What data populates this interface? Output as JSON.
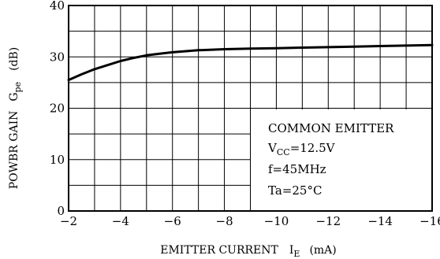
{
  "chart_data": {
    "type": "line",
    "xlabel": "EMITTER CURRENT",
    "xlabel_symbol": "I",
    "xlabel_subscript": "E",
    "xlabel_unit": "(mA)",
    "ylabel": "POWBR GAIN",
    "ylabel_symbol": "G",
    "ylabel_subscript": "pe",
    "ylabel_unit": "(dB)",
    "xlim": [
      -2,
      -16
    ],
    "ylim": [
      0,
      40
    ],
    "x_ticks": [
      "−2",
      "−4",
      "−6",
      "−8",
      "−10",
      "−12",
      "−14",
      "−16"
    ],
    "y_ticks": [
      "0",
      "10",
      "20",
      "30",
      "40"
    ],
    "grid": true,
    "x_minor_step": 1,
    "y_minor_step": 5,
    "series": [
      {
        "x": [
          -2,
          -2.5,
          -3,
          -3.5,
          -4,
          -4.5,
          -5,
          -5.5,
          -6,
          -7,
          -8,
          -9,
          -10,
          -11,
          -12,
          -13,
          -14,
          -15,
          -16
        ],
        "y": [
          25.5,
          26.6,
          27.6,
          28.4,
          29.2,
          29.8,
          30.3,
          30.6,
          30.9,
          31.3,
          31.5,
          31.6,
          31.7,
          31.8,
          31.9,
          32.0,
          32.1,
          32.2,
          32.3
        ]
      }
    ],
    "annotation": {
      "lines": [
        {
          "text": "COMMON EMITTER"
        },
        {
          "main": "V",
          "sub": "CC",
          "rest": "=12.5V"
        },
        {
          "text": "f=45MHz"
        },
        {
          "text": "Ta=25°C"
        }
      ]
    }
  }
}
